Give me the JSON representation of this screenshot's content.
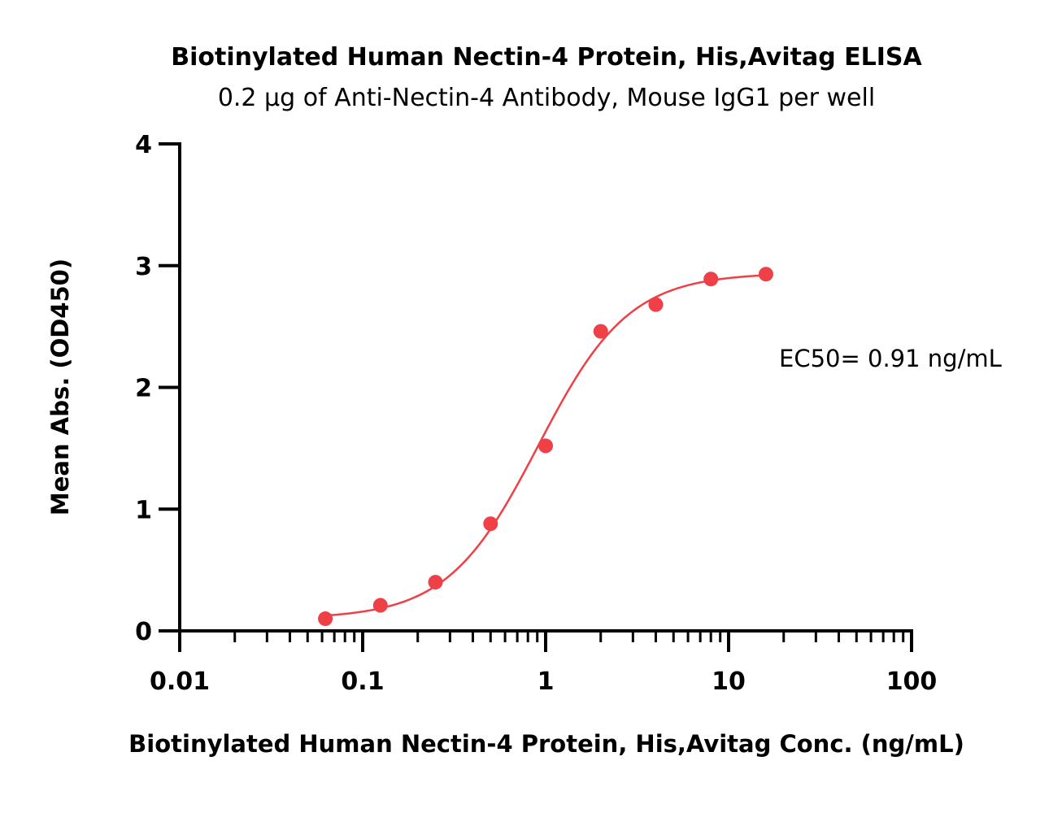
{
  "chart_data": {
    "type": "scatter",
    "title": "Biotinylated Human Nectin-4 Protein, His,Avitag ELISA",
    "subtitle": "0.2 μg of Anti-Nectin-4 Antibody, Mouse IgG1 per well",
    "xlabel": "Biotinylated Human Nectin-4 Protein, His,Avitag Conc. (ng/mL)",
    "ylabel": "Mean Abs. (OD450)",
    "x_scale": "log",
    "xlim": [
      0.01,
      100
    ],
    "ylim": [
      0,
      4
    ],
    "x_ticks": [
      "0.01",
      "0.1",
      "1",
      "10",
      "100"
    ],
    "y_ticks": [
      "0",
      "1",
      "2",
      "3",
      "4"
    ],
    "grid": false,
    "legend": "none",
    "series": [
      {
        "color": "#ef4047",
        "x": [
          0.0625,
          0.125,
          0.25,
          0.5,
          1,
          2,
          4,
          8,
          16
        ],
        "y": [
          0.1,
          0.21,
          0.4,
          0.88,
          1.52,
          2.46,
          2.68,
          2.89,
          2.93
        ],
        "fit": {
          "model": "4PL",
          "bottom": 0.1,
          "top": 2.94,
          "ec50": 0.91,
          "hill": 1.75
        }
      }
    ],
    "annotations": [
      {
        "text": "EC50= 0.91 ng/mL"
      }
    ]
  }
}
